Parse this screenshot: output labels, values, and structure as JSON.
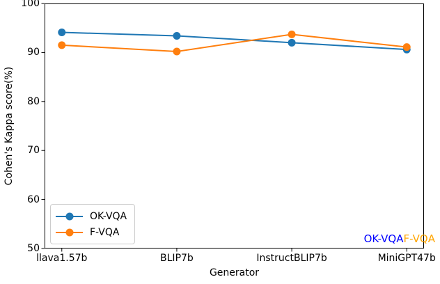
{
  "chart_data": {
    "type": "line",
    "title": "",
    "xlabel": "Generator",
    "ylabel": "Cohen's Kappa score(%)",
    "categories": [
      "llava1.57b",
      "BLIP7b",
      "InstructBLIP7b",
      "MiniGPT47b"
    ],
    "series": [
      {
        "name": "OK-VQA",
        "color": "#1f77b4",
        "values": [
          94.1,
          93.4,
          92.0,
          90.6
        ]
      },
      {
        "name": "F-VQA",
        "color": "#ff7f0e",
        "values": [
          91.5,
          90.2,
          93.7,
          91.1
        ]
      }
    ],
    "ylim": [
      50,
      100
    ],
    "yticks": [
      50,
      60,
      70,
      80,
      90,
      100
    ],
    "grid": false,
    "legend_position": "lower-left",
    "marker": "circle",
    "axis_color": "#000000",
    "background": "#ffffff"
  },
  "annotations": [
    {
      "text": "OK-VQA",
      "color": "#0000ff"
    },
    {
      "text": "F-VQA",
      "color": "#ffa500"
    }
  ]
}
